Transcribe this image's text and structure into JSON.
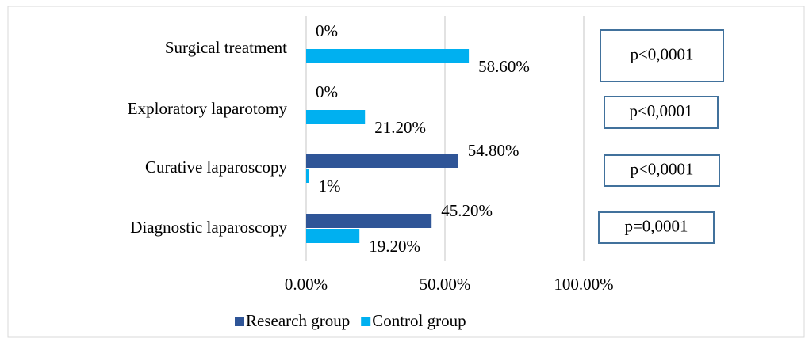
{
  "chart_data": {
    "type": "bar",
    "orientation": "horizontal",
    "categories": [
      "Surgical treatment",
      "Exploratory laparotomy",
      "Curative laparoscopy",
      "Diagnostic laparoscopy"
    ],
    "series": [
      {
        "name": "Research group",
        "color": "#2f5597",
        "values": [
          0,
          0,
          54.8,
          45.2
        ],
        "value_labels": [
          "0%",
          "0%",
          "54.80%",
          "45.20%"
        ]
      },
      {
        "name": "Control group",
        "color": "#00b0f0",
        "values": [
          58.6,
          21.2,
          1,
          19.2
        ],
        "value_labels": [
          "58.60%",
          "21.20%",
          "1%",
          "19.20%"
        ]
      }
    ],
    "xlim": [
      0,
      100
    ],
    "xticks": [
      {
        "value": 0,
        "label": "0.00%"
      },
      {
        "value": 50,
        "label": "50.00%"
      },
      {
        "value": 100,
        "label": "100.00%"
      }
    ],
    "grid": true,
    "legend": "bottom",
    "annotations": [
      "p<0,0001",
      "p<0,0001",
      "p<0,0001",
      "p=0,0001"
    ]
  }
}
